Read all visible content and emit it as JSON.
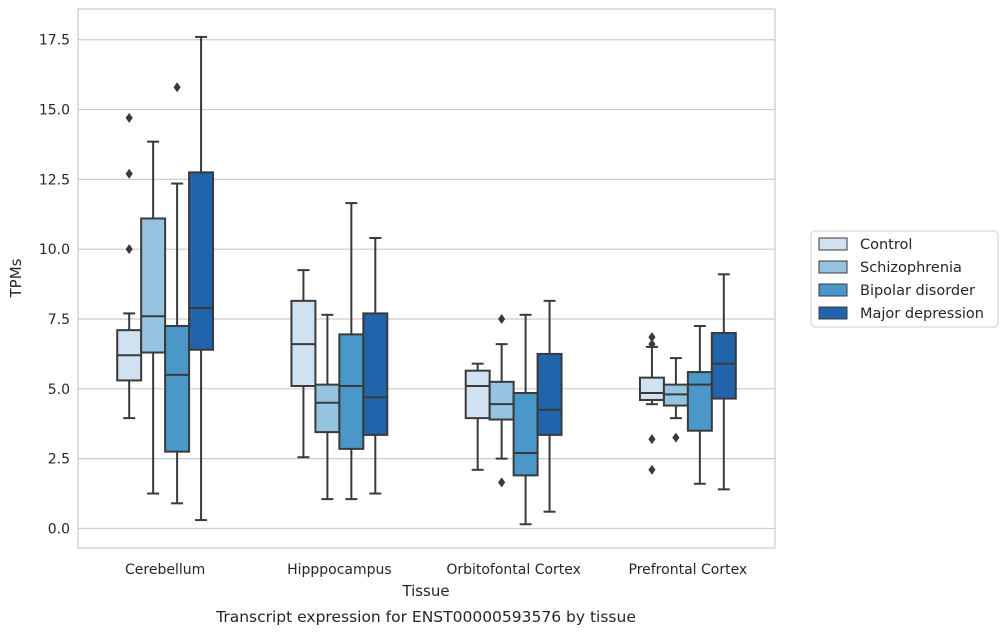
{
  "chart_data": {
    "type": "box",
    "caption": "Transcript expression for ENST00000593576 by tissue",
    "xlabel": "Tissue",
    "ylabel": "TPMs",
    "ylim": [
      -0.7,
      18.6
    ],
    "yticks": [
      0.0,
      2.5,
      5.0,
      7.5,
      10.0,
      12.5,
      15.0,
      17.5
    ],
    "ytick_labels": [
      "0.0",
      "2.5",
      "5.0",
      "7.5",
      "10.0",
      "12.5",
      "15.0",
      "17.5"
    ],
    "grid": true,
    "legend_position": "right",
    "categories": [
      "Cerebellum",
      "Hipppocampus",
      "Orbitofontal Cortex",
      "Prefrontal Cortex"
    ],
    "series": [
      {
        "name": "Control",
        "color": "#d0e1f2",
        "boxes": [
          {
            "whislo": 3.95,
            "q1": 5.3,
            "med": 6.2,
            "q3": 7.1,
            "whishi": 7.7,
            "fliers": [
              10.0,
              12.7,
              14.7
            ]
          },
          {
            "whislo": 2.55,
            "q1": 5.1,
            "med": 6.6,
            "q3": 8.15,
            "whishi": 9.25,
            "fliers": []
          },
          {
            "whislo": 2.1,
            "q1": 3.95,
            "med": 5.1,
            "q3": 5.65,
            "whishi": 5.9,
            "fliers": []
          },
          {
            "whislo": 4.45,
            "q1": 4.6,
            "med": 4.85,
            "q3": 5.4,
            "whishi": 6.5,
            "fliers": [
              2.1,
              3.2,
              6.6,
              6.85
            ]
          }
        ]
      },
      {
        "name": "Schizophrenia",
        "color": "#94c4df",
        "boxes": [
          {
            "whislo": 1.25,
            "q1": 6.3,
            "med": 7.6,
            "q3": 11.1,
            "whishi": 13.85,
            "fliers": []
          },
          {
            "whislo": 1.05,
            "q1": 3.45,
            "med": 4.5,
            "q3": 5.15,
            "whishi": 7.65,
            "fliers": []
          },
          {
            "whislo": 2.5,
            "q1": 3.9,
            "med": 4.45,
            "q3": 5.25,
            "whishi": 6.6,
            "fliers": [
              1.65,
              7.5
            ]
          },
          {
            "whislo": 3.95,
            "q1": 4.4,
            "med": 4.8,
            "q3": 5.15,
            "whishi": 6.1,
            "fliers": [
              3.25
            ]
          }
        ]
      },
      {
        "name": "Bipolar disorder",
        "color": "#4a98c9",
        "boxes": [
          {
            "whislo": 0.9,
            "q1": 2.75,
            "med": 5.5,
            "q3": 7.25,
            "whishi": 12.35,
            "fliers": [
              15.8
            ]
          },
          {
            "whislo": 1.05,
            "q1": 2.85,
            "med": 5.1,
            "q3": 6.95,
            "whishi": 11.65,
            "fliers": []
          },
          {
            "whislo": 0.15,
            "q1": 1.9,
            "med": 2.7,
            "q3": 4.85,
            "whishi": 7.65,
            "fliers": []
          },
          {
            "whislo": 1.6,
            "q1": 3.5,
            "med": 5.15,
            "q3": 5.6,
            "whishi": 7.25,
            "fliers": []
          }
        ]
      },
      {
        "name": "Major depression",
        "color": "#2164ab",
        "boxes": [
          {
            "whislo": 0.3,
            "q1": 6.4,
            "med": 7.9,
            "q3": 12.75,
            "whishi": 17.6,
            "fliers": []
          },
          {
            "whislo": 1.25,
            "q1": 3.35,
            "med": 4.7,
            "q3": 7.7,
            "whishi": 10.4,
            "fliers": []
          },
          {
            "whislo": 0.6,
            "q1": 3.35,
            "med": 4.25,
            "q3": 6.25,
            "whishi": 8.15,
            "fliers": []
          },
          {
            "whislo": 1.4,
            "q1": 4.65,
            "med": 5.9,
            "q3": 7.0,
            "whishi": 9.1,
            "fliers": []
          }
        ]
      }
    ]
  }
}
